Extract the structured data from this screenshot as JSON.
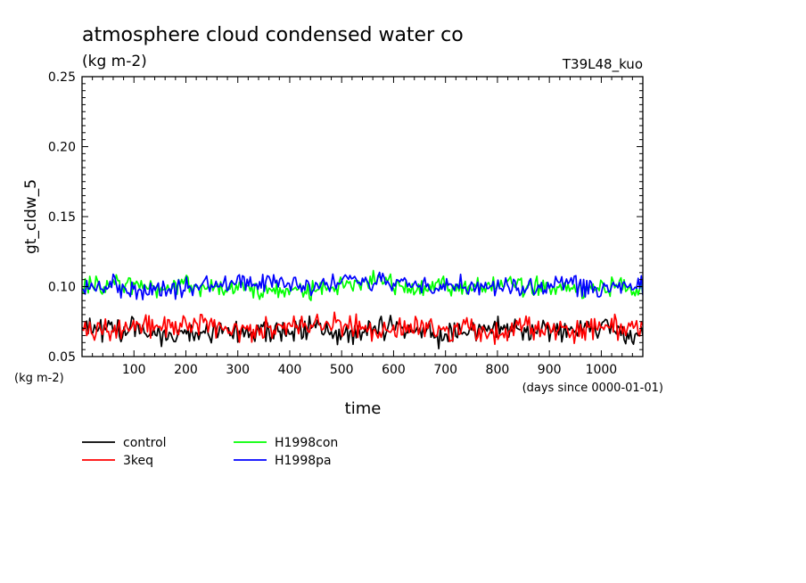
{
  "chart_data": {
    "type": "line",
    "title": "atmosphere cloud condensed water co",
    "subtitle": "(kg m-2)",
    "run_label": "T39L48_kuo",
    "ylabel": "gt_cldw_5",
    "yunits": "(kg m-2)",
    "xlabel": "time",
    "xunits": "(days since 0000-01-01)",
    "xlim": [
      0,
      1080
    ],
    "ylim": [
      0.05,
      0.25
    ],
    "xticks": [
      100,
      200,
      300,
      400,
      500,
      600,
      700,
      800,
      900,
      1000
    ],
    "xtick_labels": [
      "100",
      "200",
      "300",
      "400",
      "500",
      "600",
      "700",
      "800",
      "900",
      "1000"
    ],
    "yticks": [
      0.05,
      0.1,
      0.15,
      0.2,
      0.25
    ],
    "ytick_labels": [
      "0.05",
      "0.10",
      "0.15",
      "0.20",
      "0.25"
    ],
    "grid": false,
    "legend_position": "bottom-left",
    "series": [
      {
        "name": "control",
        "color": "#000000",
        "x": [
          0,
          30,
          60,
          90,
          120,
          150,
          180,
          210,
          240,
          270,
          300,
          330,
          360,
          390,
          420,
          450,
          480,
          510,
          540,
          570,
          600,
          630,
          660,
          690,
          720,
          750,
          780,
          810,
          840,
          870,
          900,
          930,
          960,
          990,
          1020,
          1050,
          1080
        ],
        "values": [
          0.072,
          0.07,
          0.068,
          0.069,
          0.068,
          0.066,
          0.067,
          0.066,
          0.068,
          0.068,
          0.069,
          0.066,
          0.07,
          0.067,
          0.069,
          0.071,
          0.066,
          0.064,
          0.068,
          0.07,
          0.069,
          0.068,
          0.07,
          0.065,
          0.066,
          0.067,
          0.072,
          0.069,
          0.07,
          0.068,
          0.067,
          0.068,
          0.071,
          0.069,
          0.07,
          0.067,
          0.066
        ]
      },
      {
        "name": "3keq",
        "color": "#ff0000",
        "x": [
          0,
          30,
          60,
          90,
          120,
          150,
          180,
          210,
          240,
          270,
          300,
          330,
          360,
          390,
          420,
          450,
          480,
          510,
          540,
          570,
          600,
          630,
          660,
          690,
          720,
          750,
          780,
          810,
          840,
          870,
          900,
          930,
          960,
          990,
          1020,
          1050,
          1080
        ],
        "values": [
          0.067,
          0.068,
          0.072,
          0.07,
          0.071,
          0.073,
          0.072,
          0.074,
          0.073,
          0.071,
          0.069,
          0.068,
          0.07,
          0.072,
          0.071,
          0.073,
          0.074,
          0.072,
          0.07,
          0.068,
          0.069,
          0.071,
          0.072,
          0.07,
          0.068,
          0.071,
          0.069,
          0.068,
          0.07,
          0.071,
          0.069,
          0.07,
          0.068,
          0.072,
          0.071,
          0.07,
          0.069
        ]
      },
      {
        "name": "H1998con",
        "color": "#00ff00",
        "x": [
          0,
          30,
          60,
          90,
          120,
          150,
          180,
          210,
          240,
          270,
          300,
          330,
          360,
          390,
          420,
          450,
          480,
          510,
          540,
          570,
          600,
          630,
          660,
          690,
          720,
          750,
          780,
          810,
          840,
          870,
          900,
          930,
          960,
          990,
          1020,
          1050,
          1080
        ],
        "values": [
          0.1,
          0.101,
          0.103,
          0.1,
          0.102,
          0.099,
          0.101,
          0.1,
          0.099,
          0.098,
          0.1,
          0.097,
          0.096,
          0.098,
          0.097,
          0.099,
          0.101,
          0.102,
          0.103,
          0.104,
          0.102,
          0.1,
          0.101,
          0.103,
          0.099,
          0.098,
          0.1,
          0.102,
          0.101,
          0.1,
          0.099,
          0.098,
          0.097,
          0.099,
          0.1,
          0.098,
          0.097
        ]
      },
      {
        "name": "H1998pa",
        "color": "#0000ff",
        "x": [
          0,
          30,
          60,
          90,
          120,
          150,
          180,
          210,
          240,
          270,
          300,
          330,
          360,
          390,
          420,
          450,
          480,
          510,
          540,
          570,
          600,
          630,
          660,
          690,
          720,
          750,
          780,
          810,
          840,
          870,
          900,
          930,
          960,
          990,
          1020,
          1050,
          1080
        ],
        "values": [
          0.099,
          0.1,
          0.101,
          0.099,
          0.097,
          0.098,
          0.099,
          0.1,
          0.102,
          0.101,
          0.103,
          0.104,
          0.102,
          0.103,
          0.101,
          0.102,
          0.101,
          0.103,
          0.102,
          0.104,
          0.103,
          0.102,
          0.101,
          0.102,
          0.1,
          0.101,
          0.099,
          0.1,
          0.101,
          0.099,
          0.1,
          0.101,
          0.1,
          0.099,
          0.101,
          0.1,
          0.102
        ]
      }
    ]
  }
}
